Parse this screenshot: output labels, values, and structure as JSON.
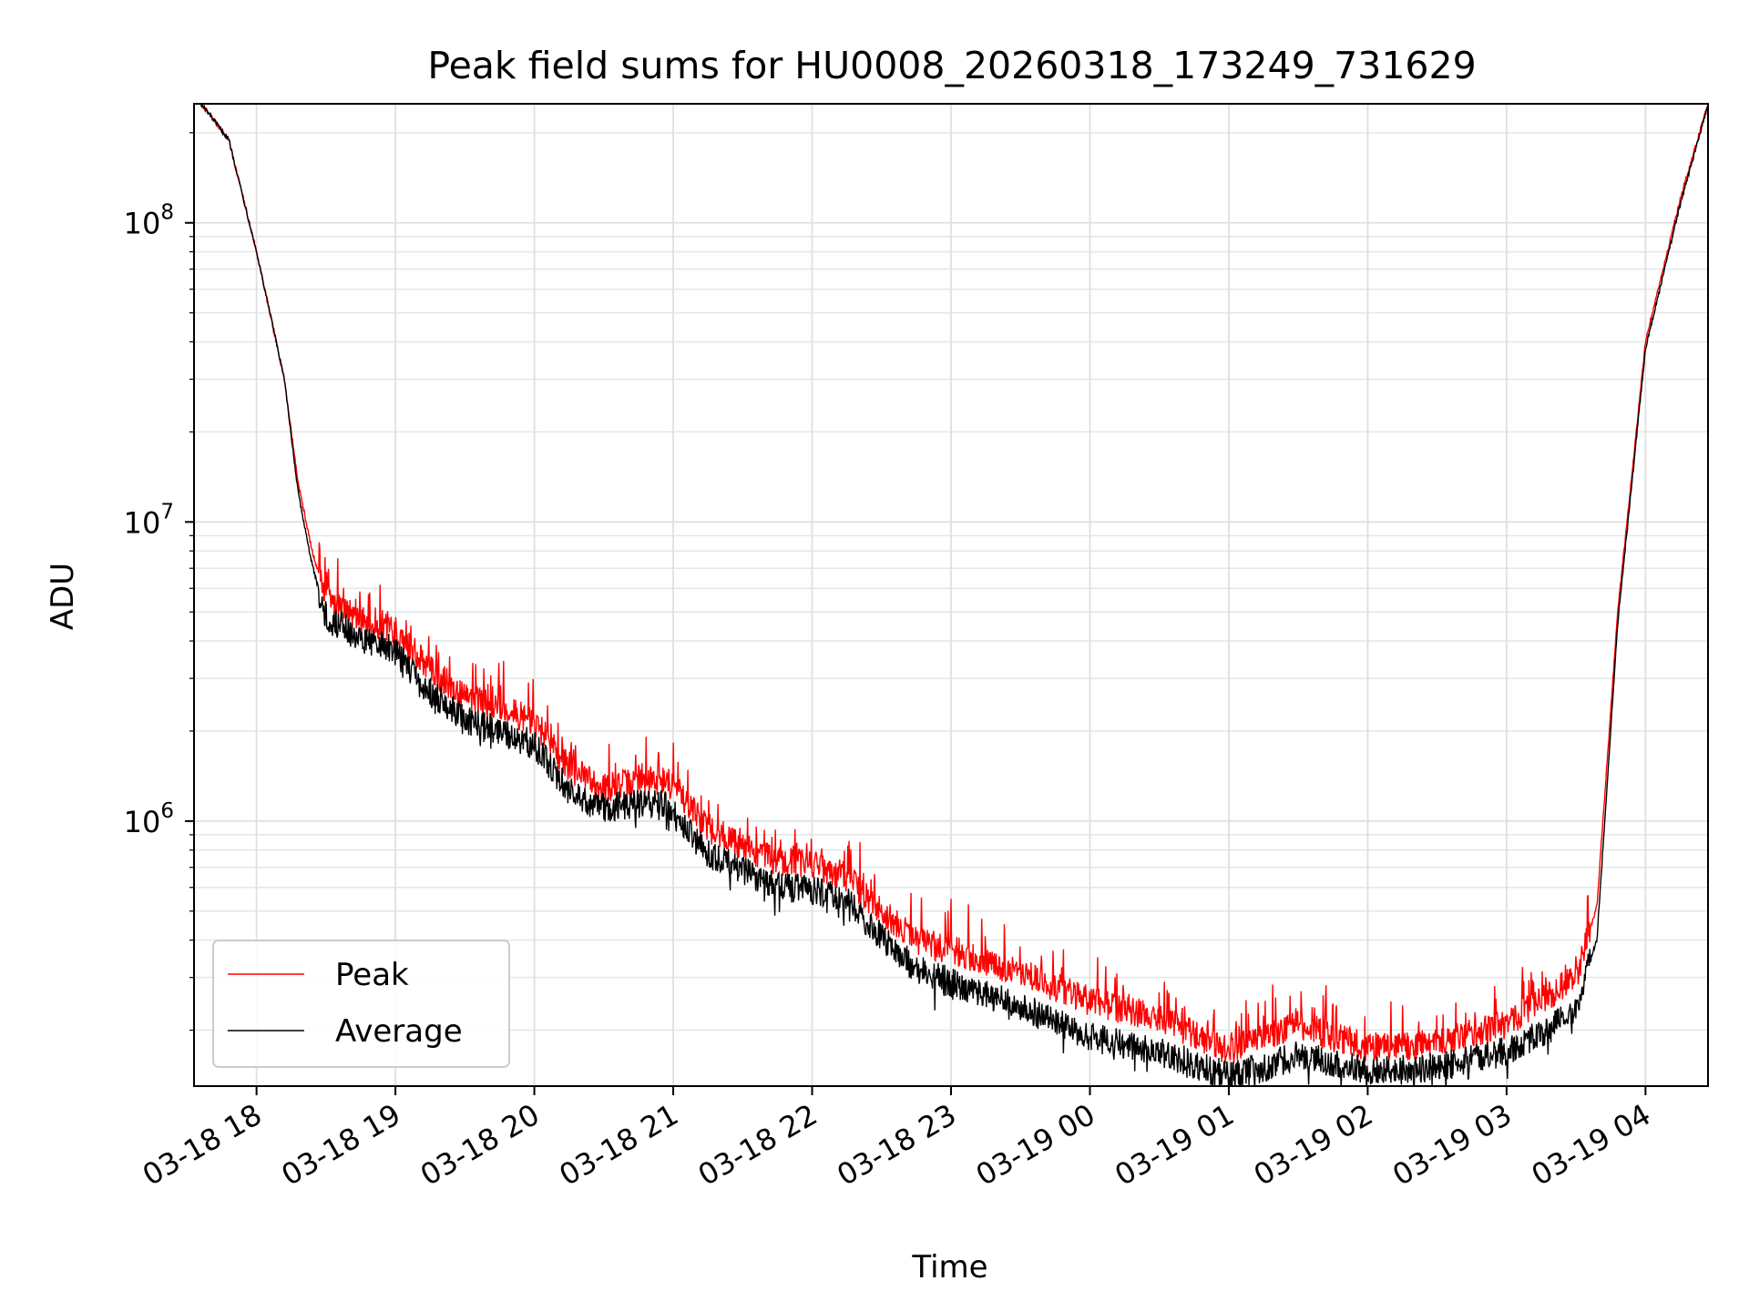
{
  "chart_data": {
    "type": "line",
    "title": "Peak field sums for HU0008_20260318_173249_731629",
    "xlabel": "Time",
    "ylabel": "ADU",
    "yscale": "log",
    "ylim": [
      130000,
      250000000
    ],
    "xlim_hours": [
      17.55,
      4.45
    ],
    "x_ticks": [
      "03-18 18",
      "03-18 19",
      "03-18 20",
      "03-18 21",
      "03-18 22",
      "03-18 23",
      "03-19 00",
      "03-19 01",
      "03-19 02",
      "03-19 03",
      "03-19 04"
    ],
    "y_ticks": [
      {
        "base": "10",
        "exp": "6",
        "value": 1000000
      },
      {
        "base": "10",
        "exp": "7",
        "value": 10000000
      },
      {
        "base": "10",
        "exp": "8",
        "value": 100000000
      }
    ],
    "grid": true,
    "legend_position": "lower-left",
    "series": [
      {
        "name": "Peak",
        "color": "#ff0000",
        "hours": [
          17.6,
          17.8,
          18.0,
          18.2,
          18.3,
          18.4,
          18.5,
          18.75,
          19.0,
          19.25,
          19.5,
          19.75,
          20.0,
          20.25,
          20.5,
          20.75,
          20.95,
          21.25,
          21.5,
          21.75,
          22.0,
          22.25,
          22.5,
          22.75,
          23.0,
          23.5,
          24.0,
          24.5,
          25.0,
          25.25,
          25.5,
          25.75,
          26.0,
          26.5,
          27.0,
          27.3,
          27.5,
          27.65,
          27.8,
          28.0,
          28.25,
          28.45
        ],
        "values": [
          250000000,
          190000000,
          80000000,
          30000000,
          13500000,
          8000000,
          5600000,
          4700000,
          4300000,
          3200000,
          2600000,
          2400000,
          2150000,
          1500000,
          1300000,
          1350000,
          1380000,
          950000,
          820000,
          730000,
          720000,
          650000,
          500000,
          400000,
          370000,
          310000,
          250000,
          220000,
          170000,
          190000,
          210000,
          190000,
          175000,
          180000,
          210000,
          260000,
          300000,
          520000,
          5000000,
          40000000,
          120000000,
          250000000
        ]
      },
      {
        "name": "Average",
        "color": "#000000",
        "hours": [
          17.6,
          17.8,
          18.0,
          18.2,
          18.3,
          18.4,
          18.5,
          18.75,
          19.0,
          19.25,
          19.5,
          19.75,
          20.0,
          20.25,
          20.5,
          20.75,
          20.95,
          21.25,
          21.5,
          21.75,
          22.0,
          22.25,
          22.5,
          22.75,
          23.0,
          23.5,
          24.0,
          24.5,
          25.0,
          25.25,
          25.5,
          25.75,
          26.0,
          26.5,
          27.0,
          27.3,
          27.5,
          27.65,
          27.8,
          28.0,
          28.25,
          28.45
        ],
        "values": [
          250000000,
          190000000,
          80000000,
          30000000,
          12500000,
          7200000,
          4800000,
          4100000,
          3700000,
          2700000,
          2200000,
          2000000,
          1800000,
          1250000,
          1100000,
          1150000,
          1120000,
          780000,
          680000,
          600000,
          590000,
          540000,
          410000,
          320000,
          290000,
          240000,
          190000,
          170000,
          140000,
          150000,
          165000,
          155000,
          145000,
          150000,
          170000,
          200000,
          240000,
          400000,
          4600000,
          38000000,
          115000000,
          250000000
        ]
      }
    ]
  }
}
